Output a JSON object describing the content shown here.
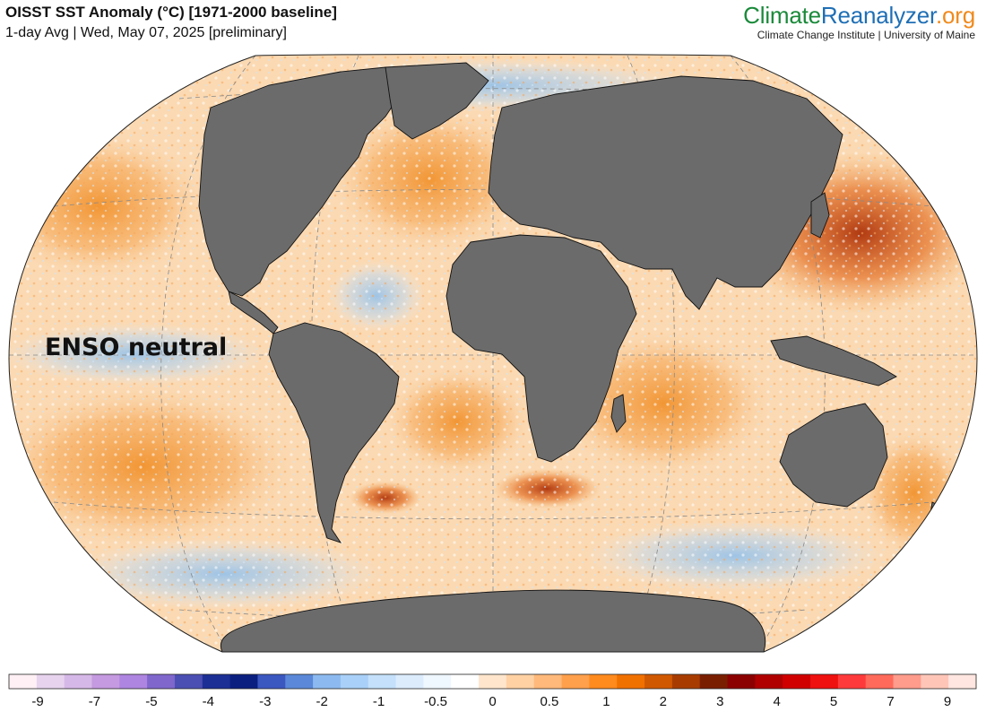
{
  "header": {
    "title": "OISST SST Anomaly (°C) [1971-2000 baseline]",
    "subtitle": "1-day Avg | Wed, May 07, 2025 [preliminary]"
  },
  "brand": {
    "name_part1": "Climate",
    "name_part2": "Reanalyzer",
    "name_part3": ".org",
    "tagline": "Climate Change Institute | University of Maine",
    "colors": {
      "part1": "#1a8a3a",
      "part2": "#1f6fb5",
      "part3": "#f08a1c"
    }
  },
  "annotation": {
    "text": "ENSO neutral"
  },
  "map": {
    "projection": "Winkel Tripel",
    "land_color": "#6b6b6b",
    "border_color": "#111111",
    "graticule_color": "#888888",
    "ocean_neutral_color": "#ffffff",
    "warm_color": "#f28a1e",
    "cool_color": "#9fc8f0"
  },
  "legend": {
    "colors": [
      "#fff0f5",
      "#e7d3ee",
      "#d6b8e8",
      "#c59ae0",
      "#ae85e0",
      "#7f67cc",
      "#4b4fb3",
      "#1b2f95",
      "#0b1f80",
      "#3b57c0",
      "#5b88d8",
      "#8cbaf0",
      "#a9d0f8",
      "#c4e0fb",
      "#dcecfd",
      "#eff7ff",
      "#ffffff",
      "#ffe5cc",
      "#ffd1a3",
      "#ffb97a",
      "#ffa04c",
      "#ff8a1e",
      "#f07000",
      "#d05800",
      "#a83c00",
      "#7a1e00",
      "#8b0000",
      "#b00000",
      "#d00000",
      "#ef1010",
      "#ff3a3a",
      "#ff6a5a",
      "#ff9c8c",
      "#ffc6b8",
      "#ffe6e0"
    ],
    "labels": [
      "-9",
      "-7",
      "-5",
      "-4",
      "-3",
      "-2",
      "-1",
      "-0.5",
      "0",
      "0.5",
      "1",
      "2",
      "3",
      "4",
      "5",
      "7",
      "9"
    ]
  }
}
